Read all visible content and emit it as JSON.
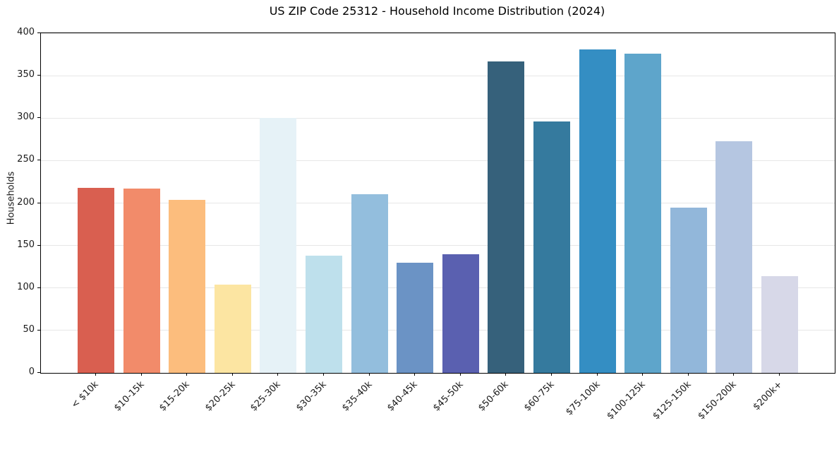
{
  "chart_data": {
    "type": "bar",
    "title": "US ZIP Code 25312 - Household Income Distribution (2024)",
    "xlabel": "",
    "ylabel": "Households",
    "ylim": [
      0,
      400
    ],
    "yticks": [
      0,
      50,
      100,
      150,
      200,
      250,
      300,
      350,
      400
    ],
    "grid": "horizontal",
    "legend": false,
    "categories": [
      "< $10k",
      "$10-15k",
      "$15-20k",
      "$20-25k",
      "$25-30k",
      "$30-35k",
      "$35-40k",
      "$40-45k",
      "$45-50k",
      "$50-60k",
      "$60-75k",
      "$75-100k",
      "$100-125k",
      "$125-150k",
      "$150-200k",
      "$200k+"
    ],
    "values": [
      218,
      217,
      204,
      104,
      300,
      138,
      210,
      130,
      140,
      367,
      296,
      381,
      376,
      195,
      273,
      114
    ],
    "bar_colors": [
      "#d95f50",
      "#f28b6a",
      "#fcbd7d",
      "#fce5a2",
      "#e6f2f7",
      "#bee0ec",
      "#93bedd",
      "#6b93c5",
      "#5a60b0",
      "#36617b",
      "#357a9e",
      "#348ec3",
      "#5ea5cb",
      "#92b7da",
      "#b5c6e1",
      "#d7d8e8"
    ],
    "colors": {
      "axis": "#000000",
      "grid": "#e7e7e7",
      "text": "#1a1a1a",
      "background": "#ffffff"
    }
  }
}
